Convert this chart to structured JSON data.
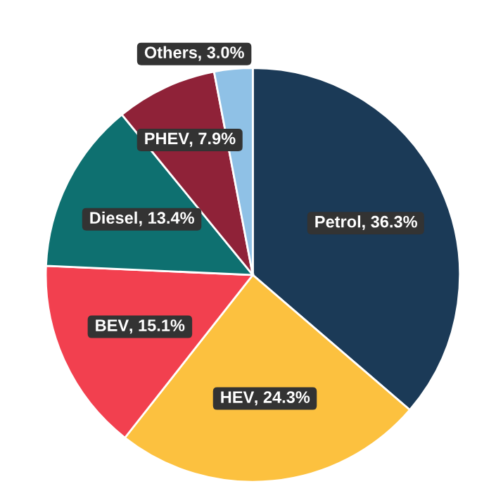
{
  "chart_data": {
    "type": "pie",
    "categories": [
      "Petrol",
      "HEV",
      "BEV",
      "Diesel",
      "PHEV",
      "Others"
    ],
    "values": [
      36.3,
      24.3,
      15.1,
      13.4,
      7.9,
      3.0
    ],
    "colors": [
      "#1b3a57",
      "#fcc13f",
      "#f2404f",
      "#0e7070",
      "#8f2238",
      "#8fc1e6"
    ],
    "value_labels": [
      ", 36.3%",
      ", 24.3%",
      ", 15.1%",
      ", 13.4%",
      ", 7.9%",
      ", 3.0%"
    ],
    "legend": false
  }
}
